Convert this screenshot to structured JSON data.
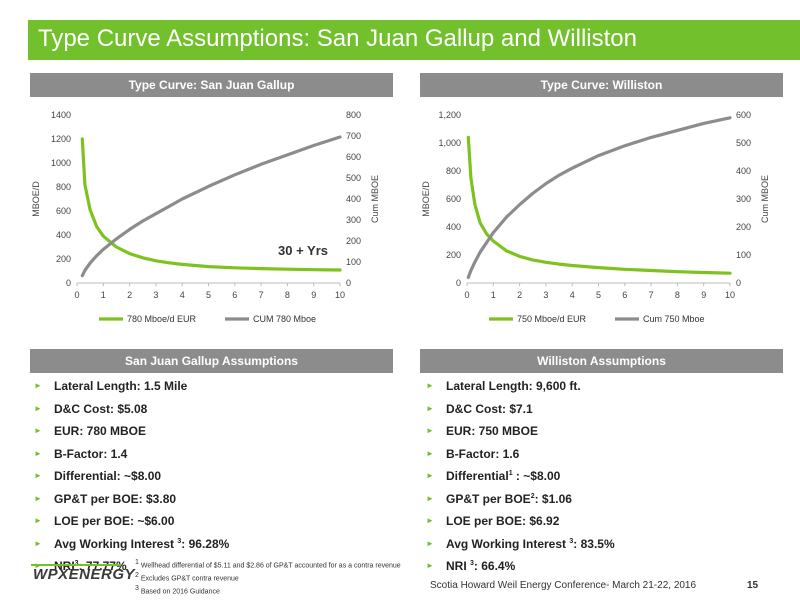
{
  "title": "Type Curve  Assumptions: San Juan Gallup and Williston",
  "left_panel": {
    "header": "Type Curve:  San Juan Gallup",
    "annotation": "30 + Yrs",
    "assumptions_header": "San Juan Gallup Assumptions",
    "bullets": [
      {
        "text": "Lateral Length: 1.5 Mile"
      },
      {
        "text": "D&C Cost:  $5.08"
      },
      {
        "text": "EUR: 780 MBOE"
      },
      {
        "text": "B-Factor: 1.4"
      },
      {
        "text": "Differential: ~$8.00"
      },
      {
        "text": "GP&T per BOE: $3.80"
      },
      {
        "text": "LOE per BOE: ~$6.00"
      },
      {
        "pre": "Avg Working Interest ",
        "sup": "3",
        "post": ": 96.28%"
      },
      {
        "pre": "NRI",
        "sup": "3",
        "post": ": 77.77%"
      }
    ]
  },
  "right_panel": {
    "header": "Type Curve:  Williston",
    "assumptions_header": "Williston Assumptions",
    "bullets": [
      {
        "text": "Lateral Length:  9,600 ft."
      },
      {
        "text": "D&C Cost:  $7.1"
      },
      {
        "text": "EUR: 750 MBOE"
      },
      {
        "text": "B-Factor: 1.6"
      },
      {
        "pre": "Differential",
        "sup": "1",
        "post": " : ~$8.00"
      },
      {
        "pre": "GP&T per BOE",
        "sup": "2",
        "post": ": $1.06"
      },
      {
        "text": "LOE per BOE: $6.92"
      },
      {
        "pre": "Avg Working Interest ",
        "sup": "3",
        "post": ": 83.5%"
      },
      {
        "pre": "NRI ",
        "sup": "3",
        "post": ": 66.4%"
      }
    ]
  },
  "footnotes": [
    {
      "sup": "1",
      "text": " Wellhead differential of $5.11 and $2.86 of GP&T accounted for as a contra revenue"
    },
    {
      "sup": "2",
      "text": " Excludes GP&T contra revenue"
    },
    {
      "sup": "3",
      "text": " Based on 2016 Guidance"
    }
  ],
  "footer": {
    "logo": "WPXENERGY",
    "conference": "Scotia Howard Weil Energy Conference-  March 21-22, 2016",
    "page": "15"
  },
  "colors": {
    "accent_green": "#72c02c",
    "header_gray": "#8c8c8c",
    "cum_line": "#8c8c8c",
    "rate_line": "#7dc21e"
  },
  "chart_data": [
    {
      "type": "line",
      "x": [
        0.2,
        0.3,
        0.5,
        0.75,
        1,
        1.5,
        2,
        2.5,
        3,
        3.5,
        4,
        5,
        6,
        7,
        8,
        9,
        10
      ],
      "xlim": [
        0,
        10
      ],
      "xticks": [
        "0",
        "1",
        "2",
        "3",
        "4",
        "5",
        "6",
        "7",
        "8",
        "9",
        "10"
      ],
      "ylabel": "MBOE/D",
      "ylim": [
        0,
        1400
      ],
      "yticks": [
        "0",
        "200",
        "400",
        "600",
        "800",
        "1000",
        "1200",
        "1400"
      ],
      "y2label": "Cum MBOE",
      "y2lim": [
        0,
        800
      ],
      "y2ticks": [
        "0",
        "100",
        "200",
        "300",
        "400",
        "500",
        "600",
        "700",
        "800"
      ],
      "series": [
        {
          "name": "780 Mboe/d EUR",
          "axis": "left",
          "color": "#7dc21e",
          "values": [
            1200,
            820,
            610,
            470,
            390,
            300,
            245,
            210,
            185,
            168,
            155,
            137,
            127,
            120,
            115,
            111,
            108
          ]
        },
        {
          "name": "CUM 780 Mboe",
          "axis": "right",
          "color": "#8c8c8c",
          "values": [
            35,
            60,
            95,
            130,
            160,
            210,
            255,
            295,
            330,
            365,
            400,
            460,
            515,
            565,
            610,
            655,
            695
          ]
        }
      ],
      "legend_position": "bottom"
    },
    {
      "type": "line",
      "x": [
        0.05,
        0.15,
        0.3,
        0.5,
        0.75,
        1,
        1.5,
        2,
        2.5,
        3,
        3.5,
        4,
        5,
        6,
        7,
        8,
        9,
        10
      ],
      "xlim": [
        0,
        10
      ],
      "xticks": [
        "0",
        "1",
        "2",
        "3",
        "4",
        "5",
        "6",
        "7",
        "8",
        "9",
        "10"
      ],
      "ylabel": "MBOE/D",
      "ylim": [
        0,
        1200
      ],
      "yticks": [
        "0",
        "200",
        "400",
        "600",
        "800",
        "1,000",
        "1,200"
      ],
      "y2label": "Cum MBOE",
      "y2lim": [
        0,
        600
      ],
      "y2ticks": [
        "0",
        "100",
        "200",
        "300",
        "400",
        "500",
        "600"
      ],
      "series": [
        {
          "name": "750 Mboe/d EUR",
          "axis": "left",
          "color": "#7dc21e",
          "values": [
            1040,
            750,
            560,
            430,
            350,
            300,
            230,
            190,
            165,
            148,
            135,
            125,
            110,
            98,
            89,
            81,
            75,
            70
          ]
        },
        {
          "name": "Cum 750 Mboe",
          "axis": "right",
          "color": "#8c8c8c",
          "values": [
            20,
            45,
            75,
            110,
            145,
            180,
            235,
            280,
            320,
            355,
            385,
            410,
            455,
            490,
            520,
            545,
            570,
            590
          ]
        }
      ],
      "legend_position": "bottom"
    }
  ]
}
